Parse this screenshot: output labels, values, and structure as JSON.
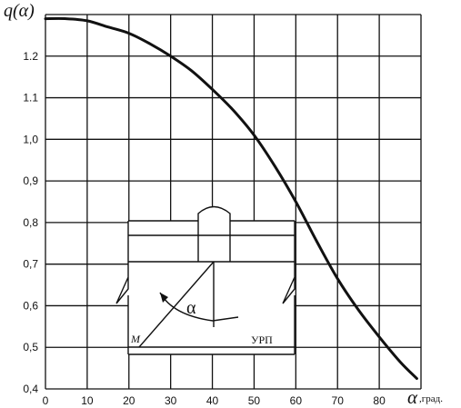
{
  "chart_data": {
    "type": "line",
    "ylabel": "q(α)",
    "xlabel_symbol": "α",
    "xlabel_unit": ",град.",
    "xlim": [
      0,
      90
    ],
    "ylim": [
      0.4,
      1.3
    ],
    "x_ticks": [
      "0",
      "10",
      "20",
      "30",
      "40",
      "50",
      "60",
      "70",
      "80"
    ],
    "y_ticks": [
      "0,4",
      "0,5",
      "0,6",
      "0,7",
      "0,8",
      "0,9",
      "1,0",
      "1.1",
      "1.2"
    ],
    "grid": true,
    "series": [
      {
        "x": [
          0,
          5,
          10,
          15,
          20,
          25,
          30,
          35,
          40,
          45,
          50,
          55,
          60,
          65,
          70,
          75,
          80,
          85,
          89
        ],
        "y": [
          1.29,
          1.29,
          1.285,
          1.27,
          1.255,
          1.23,
          1.2,
          1.165,
          1.12,
          1.07,
          1.01,
          0.935,
          0.85,
          0.755,
          0.665,
          0.59,
          0.525,
          0.465,
          0.425
        ],
        "color": "#111111"
      }
    ],
    "inset": {
      "angle_label": "α",
      "point_label": "M",
      "line_label": "УРП"
    }
  }
}
